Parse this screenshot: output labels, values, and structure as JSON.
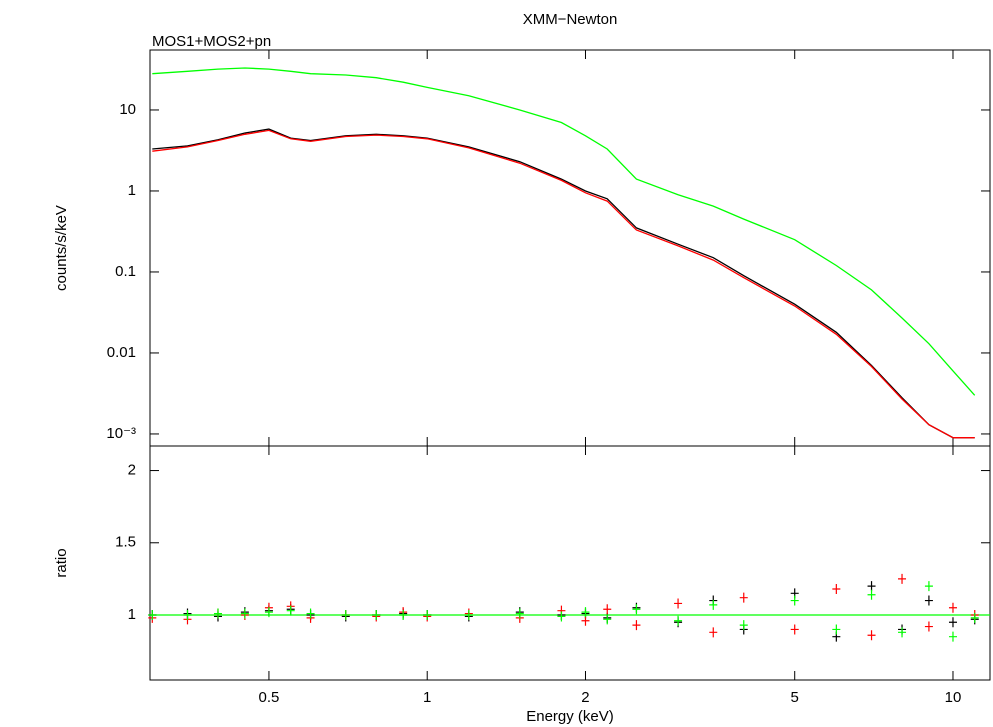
{
  "chart_data": [
    {
      "type": "line",
      "title": "XMM−Newton",
      "subtitle": "MOS1+MOS2+pn",
      "y_label": "counts/s/keV",
      "log_x": true,
      "log_y": true,
      "xlim": [
        0.297,
        11.76
      ],
      "ylim": [
        0.00071,
        55
      ],
      "xticks": [
        0.5,
        1,
        2,
        5,
        10
      ],
      "show_xtick_labels": false,
      "yticks": [
        {
          "value": 0.001,
          "label": "10⁻³"
        },
        0.01,
        0.1,
        1,
        10
      ],
      "x": [
        0.3,
        0.35,
        0.4,
        0.45,
        0.5,
        0.55,
        0.6,
        0.7,
        0.8,
        0.9,
        1,
        1.2,
        1.5,
        1.8,
        2,
        2.2,
        2.5,
        3,
        3.5,
        4,
        5,
        6,
        7,
        8,
        9,
        10,
        11
      ],
      "series": [
        {
          "color": "#000000",
          "values": [
            3.3,
            3.6,
            4.3,
            5.2,
            5.8,
            4.5,
            4.2,
            4.8,
            5,
            4.8,
            4.5,
            3.5,
            2.3,
            1.4,
            1.0,
            0.8,
            0.35,
            0.22,
            0.15,
            0.09,
            0.04,
            0.018,
            0.007,
            0.0028,
            0.0013,
            0.0009,
            0.0009
          ]
        },
        {
          "color": "#ff0000",
          "values": [
            3.1,
            3.5,
            4.2,
            5.0,
            5.6,
            4.4,
            4.1,
            4.7,
            4.9,
            4.7,
            4.4,
            3.4,
            2.2,
            1.35,
            0.95,
            0.75,
            0.33,
            0.21,
            0.14,
            0.085,
            0.038,
            0.017,
            0.0068,
            0.0027,
            0.0013,
            0.0009,
            0.0009
          ]
        },
        {
          "color": "#00ff00",
          "values": [
            28,
            30,
            32,
            33,
            32,
            30,
            28,
            27,
            25,
            22,
            19,
            15,
            10,
            7,
            4.8,
            3.3,
            1.4,
            0.9,
            0.65,
            0.45,
            0.25,
            0.12,
            0.06,
            0.027,
            0.013,
            0.006,
            0.003
          ]
        }
      ]
    },
    {
      "type": "scatter",
      "y_label": "ratio",
      "x_label": "Energy (keV)",
      "log_x": true,
      "log_y": false,
      "xlim": [
        0.297,
        11.76
      ],
      "ylim": [
        0.55,
        2.17
      ],
      "xticks": [
        0.5,
        1,
        2,
        5,
        10
      ],
      "show_xtick_labels": true,
      "yticks": [
        1,
        1.5,
        2
      ],
      "reference_line": 1,
      "reference_color": "#00ff00",
      "x": [
        0.3,
        0.35,
        0.4,
        0.45,
        0.5,
        0.55,
        0.6,
        0.7,
        0.8,
        0.9,
        1,
        1.2,
        1.5,
        1.8,
        2,
        2.2,
        2.5,
        3,
        3.5,
        4,
        5,
        6,
        7,
        8,
        9,
        10,
        11
      ],
      "series": [
        {
          "color": "#000000",
          "values": [
            1.0,
            1.01,
            0.99,
            1.02,
            1.03,
            1.04,
            1.0,
            0.99,
            1.0,
            1.01,
            1.0,
            0.99,
            1.02,
            1.0,
            1.01,
            0.98,
            1.05,
            0.95,
            1.1,
            0.9,
            1.15,
            0.85,
            1.2,
            0.9,
            1.1,
            0.95,
            0.97
          ]
        },
        {
          "color": "#ff0000",
          "values": [
            0.98,
            0.97,
            1.01,
            1.0,
            1.05,
            1.06,
            0.98,
            1.0,
            0.99,
            1.02,
            0.99,
            1.01,
            0.98,
            1.03,
            0.96,
            1.04,
            0.93,
            1.08,
            0.88,
            1.12,
            0.9,
            1.18,
            0.86,
            1.25,
            0.92,
            1.05,
            1.0
          ]
        },
        {
          "color": "#00ff00",
          "values": [
            1.0,
            1.0,
            1.01,
            1.01,
            1.02,
            1.03,
            1.01,
            1.0,
            1.0,
            1.0,
            1.0,
            1.0,
            1.01,
            0.99,
            1.02,
            0.97,
            1.04,
            0.96,
            1.07,
            0.93,
            1.1,
            0.9,
            1.14,
            0.88,
            1.2,
            0.85,
            0.98
          ]
        }
      ]
    }
  ]
}
